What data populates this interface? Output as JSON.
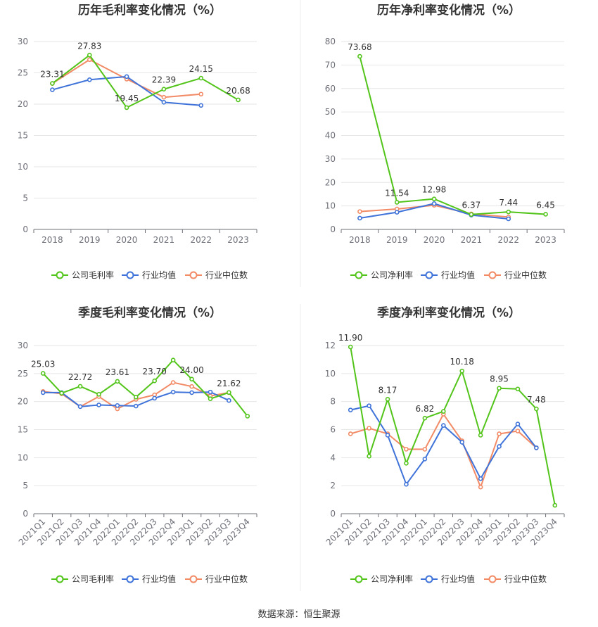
{
  "colors": {
    "company": "#52c41a",
    "avg": "#3f73d9",
    "median": "#f28a66"
  },
  "source": "数据来源：恒生聚源",
  "chart_data": [
    {
      "type": "line",
      "title": "历年毛利率变化情况（%）",
      "categories": [
        "2018",
        "2019",
        "2020",
        "2021",
        "2022",
        "2023"
      ],
      "ylim": [
        0,
        30
      ],
      "yticks": [
        0,
        5,
        10,
        15,
        20,
        25,
        30
      ],
      "series": [
        {
          "name": "公司毛利率",
          "values": [
            23.31,
            27.83,
            19.45,
            22.39,
            24.15,
            20.68
          ]
        },
        {
          "name": "行业均值",
          "values": [
            22.3,
            23.9,
            24.4,
            20.3,
            19.8,
            null
          ]
        },
        {
          "name": "行业中位数",
          "values": [
            23.3,
            27.1,
            24.0,
            21.1,
            21.6,
            null
          ]
        }
      ],
      "data_labels": [
        "23.31",
        "27.83",
        "19.45",
        "22.39",
        "24.15",
        "20.68"
      ],
      "legend": [
        "公司毛利率",
        "行业均值",
        "行业中位数"
      ]
    },
    {
      "type": "line",
      "title": "历年净利率变化情况（%）",
      "categories": [
        "2018",
        "2019",
        "2020",
        "2021",
        "2022",
        "2023"
      ],
      "ylim": [
        0,
        80
      ],
      "yticks": [
        0,
        10,
        20,
        30,
        40,
        50,
        60,
        70,
        80
      ],
      "series": [
        {
          "name": "公司净利率",
          "values": [
            73.68,
            11.54,
            12.98,
            6.37,
            7.44,
            6.45
          ]
        },
        {
          "name": "行业均值",
          "values": [
            4.8,
            7.3,
            11.0,
            6.1,
            4.5,
            null
          ]
        },
        {
          "name": "行业中位数",
          "values": [
            7.6,
            8.7,
            10.3,
            6.6,
            5.3,
            null
          ]
        }
      ],
      "data_labels": [
        "73.68",
        "11.54",
        "12.98",
        "6.37",
        "7.44",
        "6.45"
      ],
      "legend": [
        "公司净利率",
        "行业均值",
        "行业中位数"
      ]
    },
    {
      "type": "line",
      "title": "季度毛利率变化情况（%）",
      "categories": [
        "2021Q1",
        "2021Q2",
        "2021Q3",
        "2021Q4",
        "2022Q1",
        "2022Q2",
        "2022Q3",
        "2022Q4",
        "2023Q1",
        "2023Q2",
        "2023Q3",
        "2023Q4"
      ],
      "ylim": [
        0,
        30
      ],
      "yticks": [
        0,
        5,
        10,
        15,
        20,
        25,
        30
      ],
      "series": [
        {
          "name": "公司毛利率",
          "values": [
            25.03,
            21.5,
            22.72,
            21.3,
            23.61,
            20.8,
            23.7,
            27.4,
            24.0,
            20.5,
            21.62,
            17.4
          ]
        },
        {
          "name": "行业均值",
          "values": [
            21.6,
            21.6,
            19.1,
            19.4,
            19.3,
            19.2,
            20.6,
            21.7,
            21.6,
            21.7,
            20.2,
            null
          ]
        },
        {
          "name": "行业中位数",
          "values": [
            21.8,
            21.4,
            19.1,
            20.9,
            18.7,
            20.4,
            21.2,
            23.4,
            22.7,
            21.0,
            21.6,
            null
          ]
        }
      ],
      "data_labels": [
        "25.03",
        "",
        "22.72",
        "",
        "23.61",
        "",
        "23.70",
        "",
        "24.00",
        "",
        "21.62",
        ""
      ],
      "legend": [
        "公司毛利率",
        "行业均值",
        "行业中位数"
      ]
    },
    {
      "type": "line",
      "title": "季度净利率变化情况（%）",
      "categories": [
        "2021Q1",
        "2021Q2",
        "2021Q3",
        "2021Q4",
        "2022Q1",
        "2022Q2",
        "2022Q3",
        "2022Q4",
        "2023Q1",
        "2023Q2",
        "2023Q3",
        "2023Q4"
      ],
      "ylim": [
        0,
        12
      ],
      "yticks": [
        0,
        2,
        4,
        6,
        8,
        10,
        12
      ],
      "series": [
        {
          "name": "公司净利率",
          "values": [
            11.9,
            4.1,
            8.17,
            3.6,
            6.82,
            7.3,
            10.18,
            5.6,
            8.95,
            8.9,
            7.48,
            0.6
          ]
        },
        {
          "name": "行业均值",
          "values": [
            7.4,
            7.7,
            5.6,
            2.1,
            3.9,
            6.3,
            5.1,
            2.5,
            4.8,
            6.4,
            4.7,
            null
          ]
        },
        {
          "name": "行业中位数",
          "values": [
            5.7,
            6.1,
            5.7,
            4.6,
            4.6,
            7.1,
            5.2,
            1.9,
            5.7,
            5.9,
            4.7,
            null
          ]
        }
      ],
      "data_labels": [
        "11.90",
        "",
        "8.17",
        "",
        "6.82",
        "",
        "10.18",
        "",
        "8.95",
        "",
        "7.48",
        ""
      ],
      "legend": [
        "公司净利率",
        "行业均值",
        "行业中位数"
      ]
    }
  ]
}
